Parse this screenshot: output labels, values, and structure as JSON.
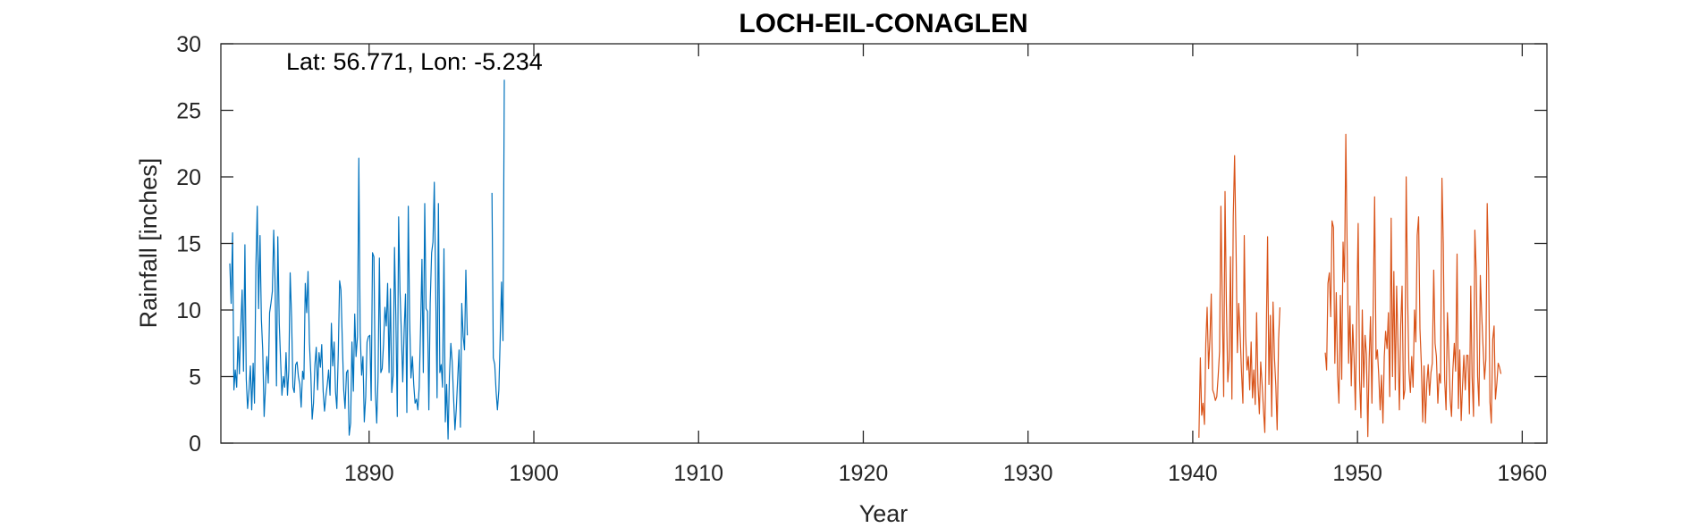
{
  "chart_data": {
    "type": "line",
    "title": "LOCH-EIL-CONAGLEN",
    "xlabel": "Year",
    "ylabel": "Rainfall [inches]",
    "annotation": "Lat: 56.771, Lon: -5.234",
    "xlim": [
      1881,
      1961.5
    ],
    "ylim": [
      0,
      30
    ],
    "xticks": [
      1890,
      1900,
      1910,
      1920,
      1930,
      1940,
      1950,
      1960
    ],
    "yticks": [
      0,
      5,
      10,
      15,
      20,
      25,
      30
    ],
    "grid": false,
    "series": [
      {
        "color": "#0072bd",
        "segments": [
          {
            "start": 1881.542,
            "step": 0.0833333,
            "values": [
              13.5,
              10.5,
              15.8,
              4.0,
              5.5,
              4.2,
              8.0,
              5.2,
              8.8,
              11.5,
              5.4,
              14.9,
              4.8,
              2.6,
              4.0,
              5.8,
              2.5,
              6.0,
              3.0,
              13.3,
              17.8,
              10.1,
              15.6,
              9.3,
              7.0,
              2.0,
              4.2,
              6.5,
              4.5,
              9.8,
              10.5,
              11.4,
              16.0,
              12.2,
              4.3,
              15.5,
              9.0,
              6.2,
              3.6,
              5.0,
              4.2,
              6.8,
              3.6,
              5.5,
              12.8,
              9.4,
              4.2,
              3.8,
              5.9,
              6.1,
              5.0,
              4.4,
              2.7,
              5.4,
              4.8,
              12.0,
              9.8,
              12.9,
              7.6,
              5.2,
              1.8,
              3.0,
              5.9,
              7.2,
              4.0,
              6.8,
              5.7,
              7.4,
              3.9,
              2.4,
              3.5,
              4.4,
              5.5,
              3.6,
              9.0,
              5.8,
              7.6,
              3.9,
              2.6,
              6.7,
              12.2,
              11.5,
              7.5,
              4.0,
              2.6,
              5.3,
              5.5,
              0.6,
              1.5,
              7.6,
              3.9,
              9.7,
              6.5,
              8.0,
              21.4,
              8.3,
              5.1,
              6.5,
              1.6,
              3.5,
              7.6,
              8.0,
              8.1,
              3.2,
              14.3,
              14.0,
              4.0,
              1.5,
              5.0,
              13.9,
              5.3,
              5.6,
              7.4,
              10.2,
              8.8,
              12.0,
              5.3,
              11.6,
              3.8,
              5.1,
              14.7,
              9.5,
              2.0,
              17.0,
              11.5,
              8.2,
              4.6,
              8.5,
              11.2,
              2.3,
              17.8,
              9.3,
              4.9,
              6.5,
              4.4,
              3.0,
              3.3,
              2.5,
              4.2,
              8.8,
              13.8,
              5.3,
              18.0,
              10.1,
              9.9,
              2.5,
              10.5,
              14.3,
              15.1,
              19.6,
              11.4,
              3.4,
              18.0,
              5.3,
              5.9,
              4.2,
              14.6,
              1.6,
              4.4,
              0.3,
              5.0,
              7.5,
              6.1,
              3.5,
              1.0,
              2.6,
              4.8,
              7.0,
              1.2,
              10.5,
              8.0,
              7.0,
              13.0,
              8.1
            ]
          },
          {
            "start": 1897.458,
            "step": 0.0833333,
            "values": [
              18.8,
              6.4,
              5.9,
              3.9,
              2.5,
              4.0,
              7.9,
              12.1,
              7.7,
              27.3
            ]
          }
        ]
      },
      {
        "color": "#d95319",
        "segments": [
          {
            "start": 1940.375,
            "step": 0.0833333,
            "values": [
              0.4,
              6.4,
              2.1,
              3.0,
              1.4,
              7.5,
              10.2,
              5.6,
              7.8,
              11.2,
              4.0,
              3.7,
              3.2,
              3.5,
              5.0,
              6.9,
              17.8,
              10.8,
              3.5,
              18.9,
              10.5,
              4.6,
              6.2,
              14.0,
              3.3,
              17.0,
              21.6,
              14.8,
              6.8,
              10.5,
              8.2,
              5.4,
              3.0,
              15.6,
              8.1,
              5.5,
              6.5,
              4.0,
              7.6,
              3.4,
              5.5,
              2.9,
              9.8,
              4.5,
              2.2,
              6.1,
              4.5,
              2.5,
              0.8,
              8.1,
              15.5,
              4.4,
              9.6,
              2.0,
              10.6,
              6.4,
              4.3,
              1.0,
              7.8,
              10.2
            ]
          },
          {
            "start": 1948.042,
            "step": 0.0833333,
            "values": [
              6.8,
              5.5,
              12.0,
              12.8,
              9.5,
              16.7,
              16.2,
              6.0,
              11.3,
              5.1,
              3.0,
              11.1,
              4.8,
              15.1,
              12.1,
              23.2,
              14.5,
              6.0,
              10.3,
              4.3,
              8.9,
              6.4,
              2.5,
              10.2,
              16.5,
              4.7,
              1.9,
              10.0,
              4.2,
              8.1,
              6.7,
              0.5,
              6.3,
              9.5,
              3.0,
              10.7,
              18.5,
              6.3,
              7.0,
              5.1,
              2.5,
              5.1,
              1.5,
              6.5,
              8.4,
              7.1,
              9.8,
              3.5,
              16.9,
              5.0,
              12.9,
              4.0,
              11.8,
              7.5,
              2.5,
              8.9,
              11.8,
              3.3,
              4.0,
              20.0,
              11.0,
              5.4,
              3.8,
              6.5,
              4.2,
              10.0,
              7.6,
              15.6,
              17.0,
              8.6,
              6.0,
              1.6,
              5.8,
              1.5,
              4.5,
              5.9,
              3.6,
              5.3,
              6.0,
              13.0,
              7.5,
              6.5,
              3.0,
              5.2,
              4.5,
              19.9,
              15.0,
              4.8,
              2.5,
              9.8,
              6.9,
              3.3,
              2.0,
              5.5,
              7.5,
              5.4,
              14.2,
              2.6,
              7.0,
              1.7,
              4.3,
              6.6,
              4.0,
              6.6,
              6.6,
              2.2,
              11.8,
              5.0,
              2.0,
              16.0,
              13.0,
              5.0,
              2.8,
              12.6,
              9.6,
              7.2,
              4.8,
              6.3,
              18.0,
              13.1,
              3.1,
              1.5,
              7.8,
              8.8,
              3.3,
              4.5,
              6.0,
              5.7,
              5.2
            ]
          }
        ]
      }
    ]
  }
}
